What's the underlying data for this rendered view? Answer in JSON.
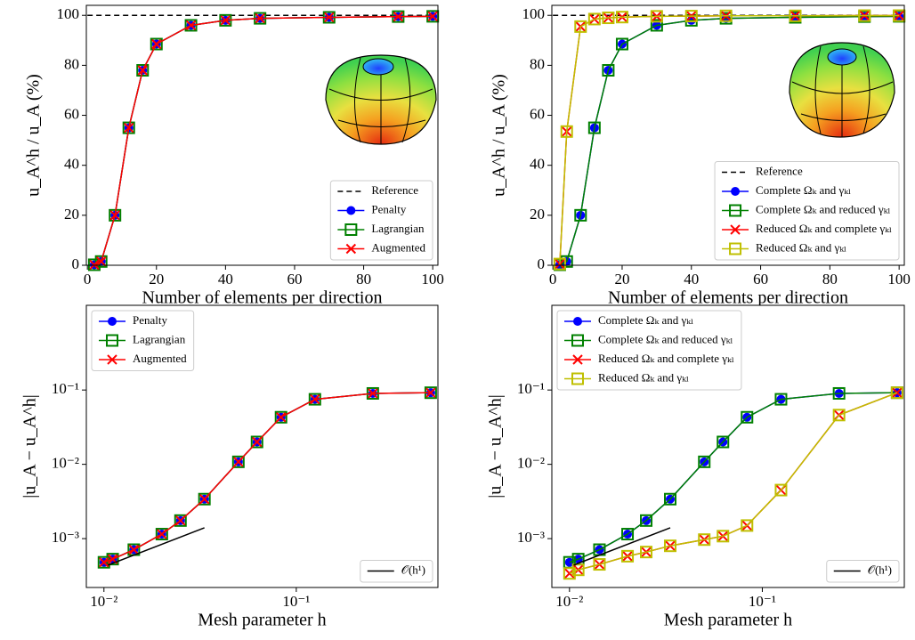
{
  "chart_data": [
    {
      "type": "line",
      "xlabel": "Number of elements per direction",
      "ylabel": "u_A^h / u_A (%)",
      "x": [
        2,
        4,
        8,
        12,
        16,
        20,
        30,
        40,
        50,
        70,
        90,
        100
      ],
      "xlim": [
        -0.3,
        101.5
      ],
      "ylim": [
        0,
        104
      ],
      "xticks": [
        0,
        20,
        40,
        60,
        80,
        100
      ],
      "yticks": [
        0,
        20,
        40,
        60,
        80,
        100
      ],
      "log": false,
      "legend": "lower right",
      "series": [
        {
          "name": "Reference",
          "color": "#000000",
          "marker": "none",
          "dash": true,
          "x": [
            0,
            100
          ],
          "values": [
            100,
            100
          ]
        },
        {
          "name": "Penalty",
          "color": "#0000ff",
          "marker": "circle",
          "values": [
            0.2,
            1.5,
            20,
            55,
            78,
            88.5,
            96,
            98,
            98.8,
            99.2,
            99.5,
            99.6
          ]
        },
        {
          "name": "Lagrangian",
          "color": "#008000",
          "marker": "square",
          "values": [
            0.2,
            1.5,
            20,
            55,
            78,
            88.5,
            96,
            98,
            98.8,
            99.2,
            99.5,
            99.6
          ]
        },
        {
          "name": "Augmented",
          "color": "#ff0000",
          "marker": "x",
          "values": [
            0.2,
            1.5,
            20,
            55,
            78,
            88.5,
            96,
            98,
            98.8,
            99.2,
            99.5,
            99.6
          ]
        }
      ]
    },
    {
      "type": "line",
      "xlabel": "Number of elements per direction",
      "ylabel": "u_A^h / u_A (%)",
      "x": [
        2,
        4,
        8,
        12,
        16,
        20,
        30,
        40,
        50,
        70,
        90,
        100
      ],
      "xlim": [
        -0.3,
        101.5
      ],
      "ylim": [
        0,
        104
      ],
      "xticks": [
        0,
        20,
        40,
        60,
        80,
        100
      ],
      "yticks": [
        0,
        20,
        40,
        60,
        80,
        100
      ],
      "log": false,
      "legend": "lower right",
      "series": [
        {
          "name": "Reference",
          "color": "#000000",
          "marker": "none",
          "dash": true,
          "x": [
            0,
            100
          ],
          "values": [
            100,
            100
          ]
        },
        {
          "name": "Complete Ωₖ and γₖₗ",
          "color": "#0000ff",
          "marker": "circle",
          "values": [
            0.2,
            1.5,
            20,
            55,
            78,
            88.5,
            96,
            98,
            98.8,
            99.2,
            99.5,
            99.6
          ]
        },
        {
          "name": "Complete Ωₖ and reduced γₖₗ",
          "color": "#008000",
          "marker": "square",
          "values": [
            0.2,
            1.5,
            20,
            55,
            78,
            88.5,
            96,
            98,
            98.8,
            99.2,
            99.5,
            99.6
          ]
        },
        {
          "name": "Reduced Ωₖ and complete γₖₗ",
          "color": "#ff0000",
          "marker": "x",
          "values": [
            0.5,
            53.5,
            95.5,
            98.5,
            99,
            99.3,
            99.6,
            99.7,
            99.8,
            99.8,
            99.9,
            99.9
          ]
        },
        {
          "name": "Reduced Ωₖ and γₖₗ",
          "color": "#bfbf00",
          "marker": "square",
          "values": [
            0.5,
            53.5,
            95.5,
            98.5,
            99,
            99.3,
            99.6,
            99.7,
            99.8,
            99.8,
            99.9,
            99.9
          ]
        }
      ]
    },
    {
      "type": "line",
      "xlabel": "Mesh parameter h",
      "ylabel": "|u_A − u_A^h|",
      "x": [
        0.01,
        0.0111,
        0.0143,
        0.02,
        0.025,
        0.0333,
        0.05,
        0.0625,
        0.0833,
        0.125,
        0.25,
        0.5
      ],
      "xlim": [
        0.0081,
        0.545
      ],
      "ylim": [
        0.00022,
        1.38
      ],
      "xticks": [
        {
          "value": 0.01,
          "label": "10⁻²"
        },
        {
          "value": 0.1,
          "label": "10⁻¹"
        }
      ],
      "yticks": [
        {
          "value": 0.001,
          "label": "10⁻³"
        },
        {
          "value": 0.01,
          "label": "10⁻²"
        },
        {
          "value": 0.1,
          "label": "10⁻¹"
        }
      ],
      "log": true,
      "legend": "upper left",
      "series": [
        {
          "name": "Penalty",
          "color": "#0000ff",
          "marker": "circle",
          "values": [
            0.00048,
            0.00053,
            0.00071,
            0.00115,
            0.00175,
            0.0034,
            0.0108,
            0.02,
            0.043,
            0.075,
            0.09,
            0.092
          ]
        },
        {
          "name": "Lagrangian",
          "color": "#008000",
          "marker": "square",
          "values": [
            0.00048,
            0.00053,
            0.00071,
            0.00115,
            0.00175,
            0.0034,
            0.0108,
            0.02,
            0.043,
            0.075,
            0.09,
            0.092
          ]
        },
        {
          "name": "Augmented",
          "color": "#ff0000",
          "marker": "x",
          "values": [
            0.00048,
            0.00053,
            0.00071,
            0.00115,
            0.00175,
            0.0034,
            0.0108,
            0.02,
            0.043,
            0.075,
            0.09,
            0.092
          ]
        },
        {
          "name": "𝒪(h¹)",
          "color": "#000000",
          "marker": "none",
          "legend": "lower right",
          "x": [
            0.0105,
            0.0333
          ],
          "values": [
            0.00044,
            0.0014
          ]
        }
      ]
    },
    {
      "type": "line",
      "xlabel": "Mesh parameter h",
      "ylabel": "|u_A − u_A^h|",
      "x": [
        0.01,
        0.0111,
        0.0143,
        0.02,
        0.025,
        0.0333,
        0.05,
        0.0625,
        0.0833,
        0.125,
        0.25,
        0.5
      ],
      "xlim": [
        0.0081,
        0.545
      ],
      "ylim": [
        0.00022,
        1.38
      ],
      "xticks": [
        {
          "value": 0.01,
          "label": "10⁻²"
        },
        {
          "value": 0.1,
          "label": "10⁻¹"
        }
      ],
      "yticks": [
        {
          "value": 0.001,
          "label": "10⁻³"
        },
        {
          "value": 0.01,
          "label": "10⁻²"
        },
        {
          "value": 0.1,
          "label": "10⁻¹"
        }
      ],
      "log": true,
      "legend": "upper left",
      "series": [
        {
          "name": "Complete Ωₖ and γₖₗ",
          "color": "#0000ff",
          "marker": "circle",
          "values": [
            0.00048,
            0.00053,
            0.00071,
            0.00115,
            0.00175,
            0.0034,
            0.0108,
            0.02,
            0.043,
            0.075,
            0.09,
            0.092
          ]
        },
        {
          "name": "Complete Ωₖ and reduced γₖₗ",
          "color": "#008000",
          "marker": "square",
          "values": [
            0.00048,
            0.00053,
            0.00071,
            0.00115,
            0.00175,
            0.0034,
            0.0108,
            0.02,
            0.043,
            0.075,
            0.09,
            0.092
          ]
        },
        {
          "name": "Reduced Ωₖ and complete γₖₗ",
          "color": "#ff0000",
          "marker": "x",
          "values": [
            0.00034,
            0.00038,
            0.00045,
            0.00058,
            0.00066,
            0.0008,
            0.00097,
            0.00108,
            0.0015,
            0.0045,
            0.046,
            0.092
          ]
        },
        {
          "name": "Reduced Ωₖ and γₖₗ",
          "color": "#bfbf00",
          "marker": "square",
          "values": [
            0.00034,
            0.00038,
            0.00045,
            0.00058,
            0.00066,
            0.0008,
            0.00097,
            0.00108,
            0.0015,
            0.0045,
            0.046,
            0.092
          ]
        },
        {
          "name": "𝒪(h¹)",
          "color": "#000000",
          "marker": "none",
          "legend": "lower right",
          "x": [
            0.0105,
            0.0333
          ],
          "values": [
            0.00044,
            0.0014
          ]
        }
      ]
    }
  ]
}
